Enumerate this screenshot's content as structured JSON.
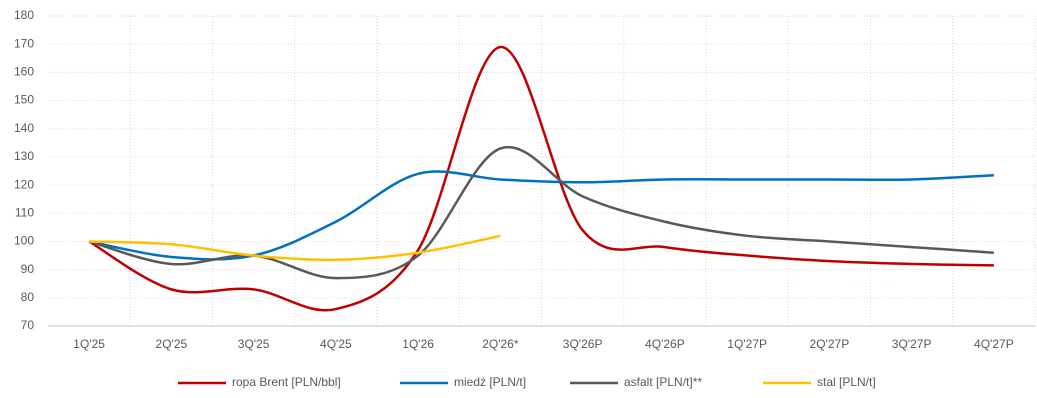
{
  "chart_data": {
    "type": "line",
    "categories": [
      "1Q'25",
      "2Q'25",
      "3Q'25",
      "4Q'25",
      "1Q'26",
      "2Q'26*",
      "3Q'26P",
      "4Q'26P",
      "1Q'27P",
      "2Q'27P",
      "3Q'27P",
      "4Q'27P"
    ],
    "series": [
      {
        "name": "ropa Brent [PLN/bbl]",
        "color": "#c00000",
        "values": [
          100,
          83,
          83,
          76,
          97,
          169,
          104,
          98,
          95,
          93,
          92,
          91.5
        ]
      },
      {
        "name": "miedź [PLN/t]",
        "color": "#0070c0",
        "values": [
          100,
          94.5,
          95,
          107,
          124,
          122,
          121,
          122,
          122,
          122,
          122,
          123.5
        ]
      },
      {
        "name": "asfalt [PLN/t]**",
        "color": "#595959",
        "values": [
          100,
          92,
          95,
          87,
          95,
          133,
          116,
          107,
          102,
          100,
          98,
          96
        ]
      },
      {
        "name": "stal [PLN/t]",
        "color": "#ffc000",
        "values": [
          100,
          99,
          95,
          93.5,
          96,
          102,
          null,
          null,
          null,
          null,
          null,
          null
        ]
      }
    ],
    "ylim": [
      70,
      180
    ],
    "yticks": [
      70,
      80,
      90,
      100,
      110,
      120,
      130,
      140,
      150,
      160,
      170,
      180
    ],
    "grid": true,
    "smooth": true,
    "legend": "bottom"
  }
}
